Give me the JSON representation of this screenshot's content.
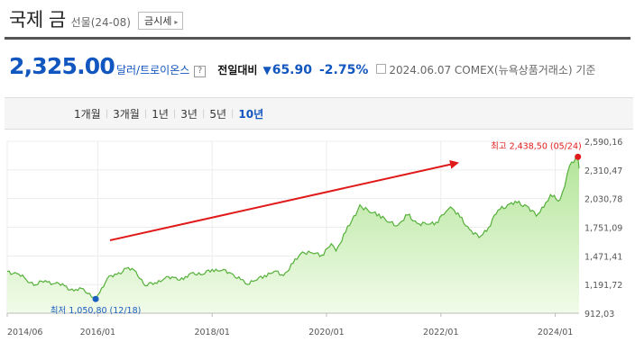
{
  "header": {
    "title": "국제 금",
    "subtitle": "선물(24-08)",
    "sise_button": "금시세",
    "sise_arrow": "▸"
  },
  "quote": {
    "price": "2,325.00",
    "unit": "달러/트로이온스",
    "help_icon": "?",
    "prev_label": "전일대비",
    "direction_icon": "▼",
    "change": "65.90",
    "change_pct": "-2.75%",
    "date_info": "2024.06.07  COMEX(뉴욕상품거래소) 기준"
  },
  "periods": [
    {
      "label": "1개월",
      "active": false
    },
    {
      "label": "3개월",
      "active": false
    },
    {
      "label": "1년",
      "active": false
    },
    {
      "label": "3년",
      "active": false
    },
    {
      "label": "5년",
      "active": false
    },
    {
      "label": "10년",
      "active": true
    }
  ],
  "colors": {
    "accent_blue": "#1256bf",
    "line_green": "#55b03a",
    "fill_green_top": "#b4e59a",
    "fill_green_bottom": "#f1fbe9",
    "high_red": "#e01a1a",
    "trend_arrow": "#e01a1a",
    "low_blue": "#1a5fbf"
  },
  "chart_data": {
    "type": "area",
    "xlim": [
      "2014-06",
      "2024-06"
    ],
    "ylim": [
      912.03,
      2590.16
    ],
    "yticks": [
      "2,590,16",
      "2,310,47",
      "2,030,78",
      "1,751,09",
      "1,471,41",
      "1,191,72",
      "912,03"
    ],
    "ytick_values": [
      2590.16,
      2310.47,
      2030.78,
      1751.09,
      1471.41,
      1191.72,
      912.03
    ],
    "xticks": [
      "2014/06",
      "2016/01",
      "2018/01",
      "2020/01",
      "2022/01",
      "2024/01"
    ],
    "xtick_dates": [
      "2014-06",
      "2016-01",
      "2018-01",
      "2020-01",
      "2022-01",
      "2024-01"
    ],
    "grid": true,
    "annotations": {
      "high": {
        "label": "최고 2,438,50 (05/24)",
        "date": "2024-05-24",
        "value": 2438.5
      },
      "low": {
        "label": "최저 1,050,80 (12/18)",
        "date": "2015-12-18",
        "value": 1050.8
      }
    },
    "series": [
      {
        "x": [
          "2014-06",
          "2014-08",
          "2014-10",
          "2014-12",
          "2015-02",
          "2015-04",
          "2015-06",
          "2015-08",
          "2015-10",
          "2015-12-18",
          "2016-01",
          "2016-03",
          "2016-05",
          "2016-07",
          "2016-09",
          "2016-11",
          "2017-01",
          "2017-03",
          "2017-05",
          "2017-07",
          "2017-09",
          "2017-11",
          "2018-01",
          "2018-03",
          "2018-05",
          "2018-07",
          "2018-08",
          "2018-10",
          "2018-12",
          "2019-02",
          "2019-04",
          "2019-06",
          "2019-08",
          "2019-10",
          "2019-12",
          "2020-02",
          "2020-03",
          "2020-05",
          "2020-08",
          "2020-10",
          "2020-12",
          "2021-02",
          "2021-04",
          "2021-06",
          "2021-08",
          "2021-10",
          "2021-12",
          "2022-02",
          "2022-03",
          "2022-05",
          "2022-07",
          "2022-09",
          "2022-11",
          "2023-01",
          "2023-03",
          "2023-05",
          "2023-07",
          "2023-09",
          "2023-11",
          "2023-12",
          "2024-02",
          "2024-03",
          "2024-04",
          "2024-05-24",
          "2024-06"
        ],
        "values": [
          1320,
          1300,
          1240,
          1190,
          1230,
          1200,
          1180,
          1130,
          1150,
          1050.8,
          1090,
          1250,
          1290,
          1350,
          1320,
          1180,
          1210,
          1250,
          1260,
          1240,
          1310,
          1290,
          1340,
          1330,
          1300,
          1240,
          1200,
          1230,
          1280,
          1320,
          1280,
          1400,
          1510,
          1500,
          1480,
          1590,
          1520,
          1700,
          1970,
          1900,
          1880,
          1800,
          1770,
          1870,
          1790,
          1780,
          1800,
          1900,
          1950,
          1850,
          1730,
          1650,
          1750,
          1920,
          1970,
          1990,
          1960,
          1860,
          1990,
          2070,
          2020,
          2150,
          2350,
          2438.5,
          2325
        ]
      }
    ]
  }
}
